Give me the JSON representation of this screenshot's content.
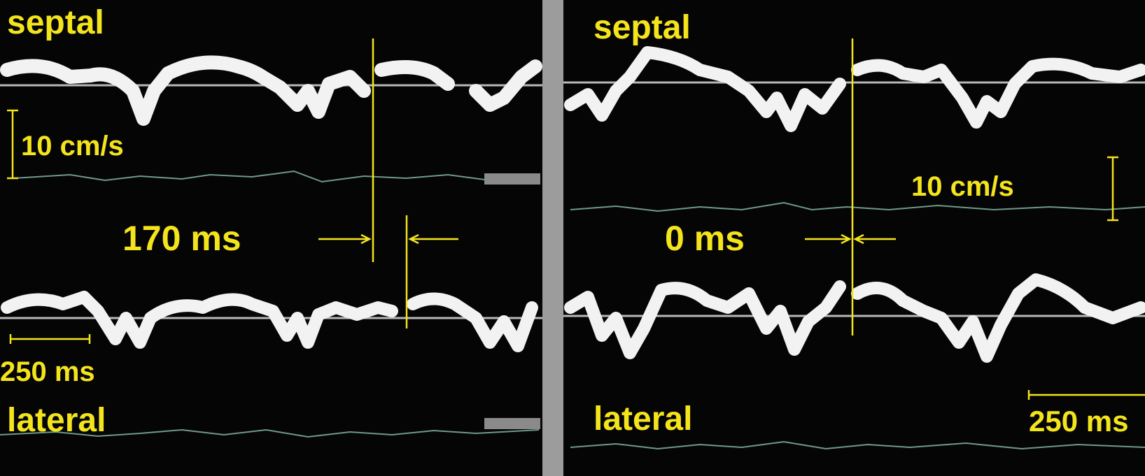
{
  "panels": [
    {
      "septal_label": "septal",
      "velocity_scale_label": "10 cm/s",
      "interval_label": "170 ms",
      "time_scale_label": "250 ms",
      "lateral_label": "lateral"
    },
    {
      "septal_label": "septal",
      "velocity_scale_label": "10 cm/s",
      "interval_label": "0 ms",
      "time_scale_label": "250 ms",
      "lateral_label": "lateral"
    }
  ]
}
